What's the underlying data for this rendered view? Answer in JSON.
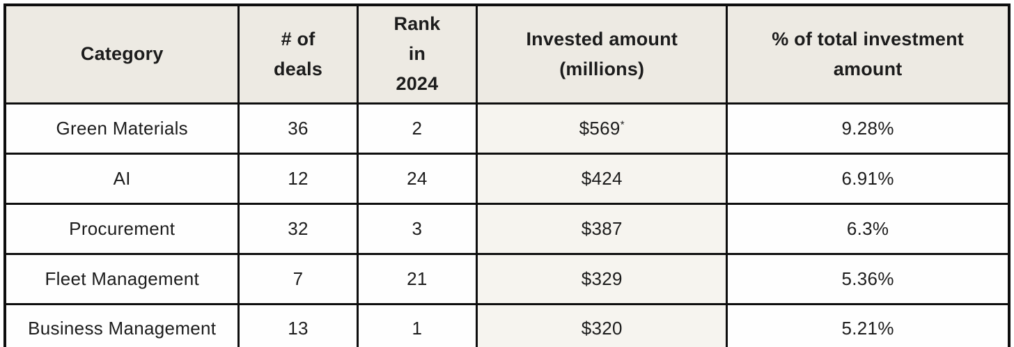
{
  "colors": {
    "page_bg": "#ffffff",
    "header_bg": "#edeae3",
    "body_bg": "#fefefe",
    "invested_col_bg": "#f6f4ef",
    "border": "#0e0e0e",
    "text": "#1c1c1c"
  },
  "table": {
    "columns": [
      {
        "label": "Category"
      },
      {
        "label": "# of deals"
      },
      {
        "label": "Rank in 2024"
      },
      {
        "label": "Invested amount (millions)"
      },
      {
        "label": "% of total investment amount"
      }
    ],
    "rows": [
      {
        "category": "Green Materials",
        "deals": "36",
        "rank": "2",
        "invested": "$569",
        "invested_note": "*",
        "pct": "9.28%"
      },
      {
        "category": "AI",
        "deals": "12",
        "rank": "24",
        "invested": "$424",
        "invested_note": "",
        "pct": "6.91%"
      },
      {
        "category": "Procurement",
        "deals": "32",
        "rank": "3",
        "invested": "$387",
        "invested_note": "",
        "pct": "6.3%"
      },
      {
        "category": "Fleet Management",
        "deals": "7",
        "rank": "21",
        "invested": "$329",
        "invested_note": "",
        "pct": "5.36%"
      },
      {
        "category": "Business Management",
        "deals": "13",
        "rank": "1",
        "invested": "$320",
        "invested_note": "",
        "pct": "5.21%"
      }
    ]
  },
  "chart_data": {
    "type": "table",
    "title": "",
    "columns": [
      "Category",
      "# of deals",
      "Rank in 2024",
      "Invested amount (millions)",
      "% of total investment amount"
    ],
    "rows": [
      [
        "Green Materials",
        36,
        2,
        "$569*",
        "9.28%"
      ],
      [
        "AI",
        12,
        24,
        "$424",
        "6.91%"
      ],
      [
        "Procurement",
        32,
        3,
        "$387",
        "6.3%"
      ],
      [
        "Fleet Management",
        7,
        21,
        "$329",
        "5.36%"
      ],
      [
        "Business Management",
        13,
        1,
        "$320",
        "5.21%"
      ]
    ],
    "notes": "Asterisk footnote marker appears on $569 in the Green Materials row. Header row and Invested amount column have a beige fill; other cells are white."
  }
}
